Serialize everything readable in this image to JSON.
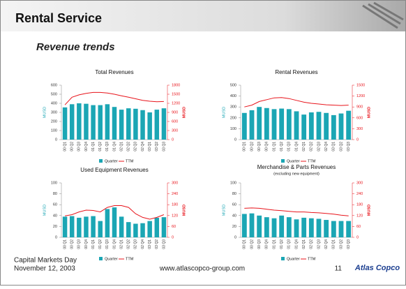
{
  "header": {
    "title": "Rental Service",
    "subtitle": "Revenue trends"
  },
  "footer": {
    "event": "Capital Markets Day",
    "date": "November 12, 2003",
    "url": "www.atlascopco-group.com",
    "page": "11",
    "logo": "Atlas Copco"
  },
  "chart_data": [
    {
      "type": "bar",
      "title": "Total Revenues",
      "categories": [
        "00 Q1",
        "00 Q2",
        "00 Q3",
        "00 Q4",
        "01 Q1",
        "01 Q2",
        "01 Q3",
        "01 Q4",
        "02 Q1",
        "02 Q2",
        "02 Q3",
        "02 Q4",
        "03 Q1",
        "03 Q2",
        "03 Q3"
      ],
      "series": [
        {
          "name": "Quarter",
          "color": "#1ba6b4",
          "values": [
            355,
            390,
            400,
            395,
            380,
            380,
            390,
            360,
            330,
            345,
            340,
            325,
            300,
            330,
            345
          ]
        },
        {
          "name": "TTM",
          "type": "line",
          "axis": "y2",
          "color": "#e8141b",
          "values": [
            1150,
            1400,
            1480,
            1530,
            1560,
            1560,
            1540,
            1500,
            1450,
            1400,
            1350,
            1300,
            1270,
            1250,
            1260
          ]
        }
      ],
      "ylabel": "MUSD",
      "y2label": "MUSD",
      "ylim": [
        0,
        600
      ],
      "yticks": [
        0,
        100,
        200,
        300,
        400,
        500,
        600
      ],
      "y2lim": [
        0,
        1800
      ],
      "y2ticks": [
        0,
        300,
        600,
        900,
        1200,
        1500,
        1800
      ]
    },
    {
      "type": "bar",
      "title": "Rental Revenues",
      "categories": [
        "00 Q1",
        "00 Q2",
        "00 Q3",
        "00 Q4",
        "01 Q1",
        "01 Q2",
        "01 Q3",
        "01 Q4",
        "02 Q1",
        "02 Q2",
        "02 Q3",
        "02 Q4",
        "03 Q1",
        "03 Q2",
        "03 Q3"
      ],
      "series": [
        {
          "name": "Quarter",
          "color": "#1ba6b4",
          "values": [
            245,
            270,
            300,
            290,
            280,
            285,
            280,
            260,
            230,
            250,
            255,
            245,
            225,
            240,
            265
          ]
        },
        {
          "name": "TTM",
          "type": "line",
          "axis": "y2",
          "color": "#e8141b",
          "values": [
            900,
            950,
            1050,
            1100,
            1150,
            1160,
            1130,
            1080,
            1030,
            1000,
            980,
            960,
            950,
            940,
            950
          ]
        }
      ],
      "ylabel": "MUSD",
      "y2label": "MUSD",
      "ylim": [
        0,
        500
      ],
      "yticks": [
        0,
        100,
        200,
        300,
        400,
        500
      ],
      "y2lim": [
        0,
        1500
      ],
      "y2ticks": [
        0,
        300,
        600,
        900,
        1200,
        1500
      ]
    },
    {
      "type": "bar",
      "title": "Used Equipment Revenues",
      "categories": [
        "00 Q1",
        "00 Q2",
        "00 Q3",
        "00 Q4",
        "01 Q1",
        "01 Q2",
        "01 Q3",
        "01 Q4",
        "02 Q1",
        "02 Q2",
        "02 Q3",
        "02 Q4",
        "03 Q1",
        "03 Q2",
        "03 Q3"
      ],
      "series": [
        {
          "name": "Quarter",
          "color": "#1ba6b4",
          "values": [
            38,
            39,
            36,
            38,
            39,
            30,
            52,
            55,
            38,
            28,
            25,
            26,
            30,
            36,
            37
          ]
        },
        {
          "name": "TTM",
          "type": "line",
          "axis": "y2",
          "color": "#e8141b",
          "values": [
            118,
            125,
            140,
            150,
            148,
            140,
            165,
            175,
            175,
            165,
            130,
            110,
            100,
            110,
            125
          ]
        }
      ],
      "ylabel": "MUSD",
      "y2label": "MUSD",
      "ylim": [
        0,
        100
      ],
      "yticks": [
        0,
        20,
        40,
        60,
        80,
        100
      ],
      "y2lim": [
        0,
        300
      ],
      "y2ticks": [
        0,
        60,
        120,
        180,
        240,
        300
      ]
    },
    {
      "type": "bar",
      "title": "Merchandise & Parts Revenues",
      "subtitle": "(excluding new equipment)",
      "categories": [
        "00 Q1",
        "00 Q2",
        "00 Q3",
        "00 Q4",
        "01 Q1",
        "01 Q2",
        "01 Q3",
        "01 Q4",
        "02 Q1",
        "02 Q2",
        "02 Q3",
        "02 Q4",
        "03 Q1",
        "03 Q2",
        "03 Q3"
      ],
      "series": [
        {
          "name": "Quarter",
          "color": "#1ba6b4",
          "values": [
            43,
            44,
            40,
            37,
            35,
            40,
            37,
            33,
            36,
            35,
            34,
            32,
            30,
            30,
            30
          ]
        },
        {
          "name": "TTM",
          "type": "line",
          "axis": "y2",
          "color": "#e8141b",
          "values": [
            160,
            162,
            160,
            155,
            150,
            147,
            143,
            140,
            140,
            137,
            135,
            132,
            128,
            122,
            118
          ]
        }
      ],
      "ylabel": "MUSD",
      "y2label": "MUSD",
      "ylim": [
        0,
        100
      ],
      "yticks": [
        0,
        20,
        40,
        60,
        80,
        100
      ],
      "y2lim": [
        0,
        300
      ],
      "y2ticks": [
        0,
        60,
        120,
        180,
        240,
        300
      ]
    }
  ]
}
